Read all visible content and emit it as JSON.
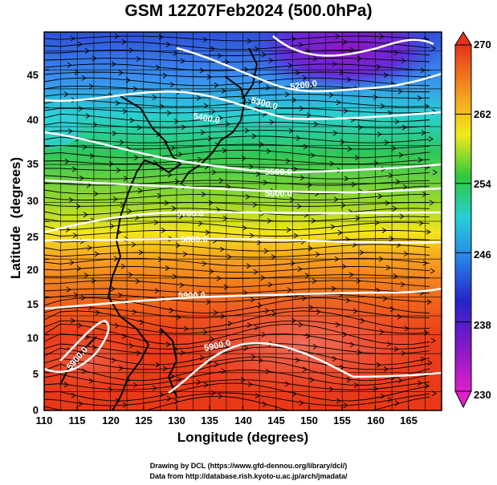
{
  "title": "GSM 12Z07Feb2024 (500.0hPa)",
  "x_axis": {
    "title": "Longitude (degrees)",
    "ticks": [
      "110",
      "115",
      "120",
      "125",
      "130",
      "135",
      "140",
      "145",
      "150",
      "155",
      "160",
      "165"
    ]
  },
  "y_axis": {
    "title": "Latitude  (degrees)",
    "ticks": [
      "0",
      "5",
      "10",
      "15",
      "20",
      "25",
      "30",
      "35",
      "40",
      "45"
    ]
  },
  "colorbar": {
    "labels": [
      "270",
      "262",
      "254",
      "246",
      "238",
      "230"
    ]
  },
  "contours": [
    {
      "level": "5200.0"
    },
    {
      "level": "5300.0"
    },
    {
      "level": "5400.0"
    },
    {
      "level": "5500.0"
    },
    {
      "level": "5600.0"
    },
    {
      "level": "5700.0"
    },
    {
      "level": "5800.0"
    },
    {
      "level": "5900.0"
    }
  ],
  "credits": [
    "Drawing by DCL (https://www.gfd-dennou.org/library/dcl/)",
    "Data from http://database.rish.kyoto-u.ac.jp/arch/jmadata/"
  ],
  "map": {
    "lon_range": [
      110,
      170
    ],
    "lat_range": [
      0,
      50
    ],
    "grid": true,
    "colormap": "temperature rainbow (magenta-blue-green-yellow-red)"
  }
}
